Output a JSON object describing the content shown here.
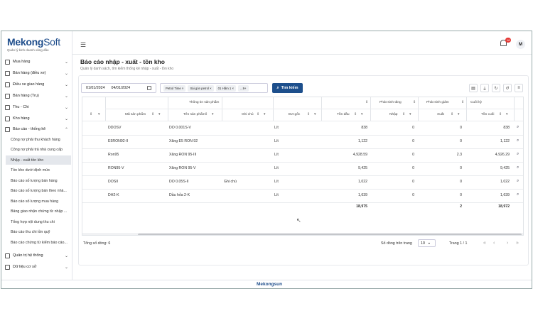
{
  "app": {
    "logo": "Mekong",
    "logo_o": "o",
    "logo_suffix": "Soft",
    "tagline": "Quản lý kinh doanh xăng dầu",
    "footer_logo": "Mekongsun",
    "user_initial": "M",
    "notification_count": "16"
  },
  "sidebar": {
    "items": [
      {
        "label": "Mua hàng",
        "icon": "cart-icon"
      },
      {
        "label": "Bán hàng (điều xe)",
        "icon": "truck-icon"
      },
      {
        "label": "Điều xe giao hàng",
        "icon": "delivery-icon"
      },
      {
        "label": "Bán hàng (Trụ)",
        "icon": "pump-icon"
      },
      {
        "label": "Thu - Chi",
        "icon": "wallet-icon"
      },
      {
        "label": "Kho hàng",
        "icon": "warehouse-icon"
      },
      {
        "label": "Báo cáo - thống kê",
        "icon": "report-icon"
      }
    ],
    "sub_items": [
      "Công nợ phải thu khách hàng",
      "Công nợ phải trả nhà cung cấp",
      "Nhập - xuất tồn kho",
      "Tồn kho dưới định mức",
      "Báo cáo số lượng bán hàng",
      "Báo cáo số lượng bán theo nhà...",
      "Báo cáo số lượng mua hàng",
      "Bảng giao nhận chứng từ nhập ...",
      "Tổng hợp nội dung thu chi",
      "Báo cáo thu chi tồn quỹ",
      "Báo cáo chứng từ kiểm báo cáo..."
    ],
    "bottom_items": [
      {
        "label": "Quản trị hệ thống",
        "icon": "settings-icon"
      },
      {
        "label": "Dữ liệu cơ sở",
        "icon": "database-icon"
      }
    ]
  },
  "page": {
    "title": "Báo cáo nhập - xuất - tồn kho",
    "subtitle": "Quản lý danh sách, tìm kiếm thống kê nhập - xuất - tồn kho"
  },
  "filters": {
    "date_from": "01/01/2024",
    "date_to": "04/01/2024",
    "chips": [
      "Petrol Time ×",
      "Sài gòn petrol ×",
      "01 Hầm 1 ×",
      "...9+"
    ],
    "search_label": "Tìm kiếm"
  },
  "table": {
    "group_headers": [
      "Thông tin sản phẩm",
      "Phát sinh tăng",
      "Phát sinh giảm",
      "Cuối kỳ"
    ],
    "columns": [
      "Mã sản phẩm",
      "Tên sản phẩm",
      "Ghi chú",
      "Đvt gốc",
      "Tồn đầu",
      "Nhập",
      "Xuất",
      "Tồn cuối"
    ],
    "rows": [
      [
        "DDOSV",
        "DO 0.001S-V",
        "",
        "Lít",
        "838",
        "0",
        "0",
        "838"
      ],
      [
        "E5RON92-II",
        "Xăng E5 RON 92",
        "",
        "Lít",
        "1,122",
        "0",
        "0",
        "1,122"
      ],
      [
        "Ron95",
        "Xăng RON 95-III",
        "",
        "Lít",
        "4,928.59",
        "0",
        "2.3",
        "4,926.29"
      ],
      [
        "RON95-V",
        "Xăng RON 95-V",
        "",
        "Lít",
        "9,425",
        "0",
        "0",
        "9,425"
      ],
      [
        "DOSII",
        "DO 0.05S-II",
        "Ghi chú",
        "Lít",
        "1,022",
        "0",
        "0",
        "1,022"
      ],
      [
        "DH2-K",
        "Dầu hỏa 2-K",
        "",
        "Lít",
        "1,639",
        "0",
        "0",
        "1,639"
      ]
    ],
    "totals": {
      "ton_dau": "18,975",
      "xuat": "2",
      "ton_cuoi": "18,972"
    }
  },
  "pagination": {
    "total_label": "Tổng số dòng: 6",
    "rows_per_page_label": "Số dòng trên trang",
    "rows_per_page": "10",
    "page_info": "Trang 1 / 1"
  }
}
